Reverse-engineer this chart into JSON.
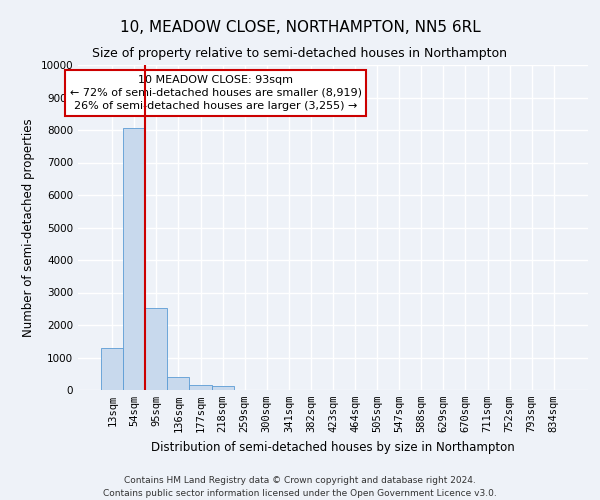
{
  "title": "10, MEADOW CLOSE, NORTHAMPTON, NN5 6RL",
  "subtitle": "Size of property relative to semi-detached houses in Northampton",
  "xlabel": "Distribution of semi-detached houses by size in Northampton",
  "ylabel": "Number of semi-detached properties",
  "bar_color": "#c8d9ed",
  "bar_edge_color": "#5b9bd5",
  "categories": [
    "13sqm",
    "54sqm",
    "95sqm",
    "136sqm",
    "177sqm",
    "218sqm",
    "259sqm",
    "300sqm",
    "341sqm",
    "382sqm",
    "423sqm",
    "464sqm",
    "505sqm",
    "547sqm",
    "588sqm",
    "629sqm",
    "670sqm",
    "711sqm",
    "752sqm",
    "793sqm",
    "834sqm"
  ],
  "values": [
    1300,
    8050,
    2530,
    390,
    155,
    110,
    0,
    0,
    0,
    0,
    0,
    0,
    0,
    0,
    0,
    0,
    0,
    0,
    0,
    0,
    0
  ],
  "ylim": [
    0,
    10000
  ],
  "yticks": [
    0,
    1000,
    2000,
    3000,
    4000,
    5000,
    6000,
    7000,
    8000,
    9000,
    10000
  ],
  "property_bin_index": 2,
  "annotation_title": "10 MEADOW CLOSE: 93sqm",
  "annotation_line1": "← 72% of semi-detached houses are smaller (8,919)",
  "annotation_line2": "26% of semi-detached houses are larger (3,255) →",
  "annotation_box_color": "#ffffff",
  "annotation_box_edge": "#cc0000",
  "vline_color": "#cc0000",
  "footer_line1": "Contains HM Land Registry data © Crown copyright and database right 2024.",
  "footer_line2": "Contains public sector information licensed under the Open Government Licence v3.0.",
  "background_color": "#eef2f8",
  "grid_color": "#ffffff",
  "title_fontsize": 11,
  "subtitle_fontsize": 9,
  "axis_label_fontsize": 8.5,
  "tick_fontsize": 7.5,
  "footer_fontsize": 6.5
}
